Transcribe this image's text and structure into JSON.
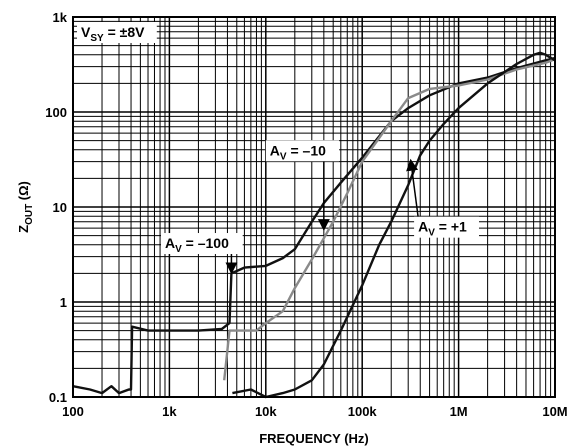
{
  "chart_data": {
    "type": "line",
    "title": "",
    "xlabel": "FREQUENCY (Hz)",
    "ylabel_main": "Z",
    "ylabel_sub": "OUT",
    "ylabel_unit": " (Ω)",
    "x_scale": "log",
    "y_scale": "log",
    "xlim": [
      100,
      10000000
    ],
    "ylim": [
      0.1,
      1000
    ],
    "grid": true,
    "x_ticks": [
      {
        "value": 100,
        "label": "100"
      },
      {
        "value": 1000,
        "label": "1k"
      },
      {
        "value": 10000,
        "label": "10k"
      },
      {
        "value": 100000,
        "label": "100k"
      },
      {
        "value": 1000000,
        "label": "1M"
      },
      {
        "value": 10000000,
        "label": "10M"
      }
    ],
    "y_ticks": [
      {
        "value": 0.1,
        "label": "0.1"
      },
      {
        "value": 1,
        "label": "1"
      },
      {
        "value": 10,
        "label": "10"
      },
      {
        "value": 100,
        "label": "100"
      },
      {
        "value": 1000,
        "label": "1k"
      }
    ],
    "condition": {
      "main": "V",
      "sub": "SY",
      "rest": " = ±8V"
    },
    "series": [
      {
        "name": "AV = -100",
        "color": "#111111",
        "points": [
          [
            100,
            0.13
          ],
          [
            150,
            0.12
          ],
          [
            200,
            0.11
          ],
          [
            250,
            0.13
          ],
          [
            300,
            0.11
          ],
          [
            380,
            0.12
          ],
          [
            400,
            0.12
          ],
          [
            410,
            0.55
          ],
          [
            600,
            0.5
          ],
          [
            1000,
            0.5
          ],
          [
            2000,
            0.5
          ],
          [
            3500,
            0.52
          ],
          [
            4200,
            0.6
          ],
          [
            4400,
            2.0
          ],
          [
            6000,
            2.3
          ],
          [
            10000,
            2.4
          ],
          [
            15000,
            2.9
          ],
          [
            20000,
            3.6
          ],
          [
            30000,
            7
          ],
          [
            40000,
            11
          ],
          [
            60000,
            18
          ],
          [
            100000,
            33
          ],
          [
            200000,
            80
          ],
          [
            300000,
            110
          ],
          [
            500000,
            150
          ],
          [
            1000000,
            200
          ],
          [
            2000000,
            230
          ],
          [
            4000000,
            290
          ],
          [
            8000000,
            350
          ],
          [
            10000000,
            370
          ]
        ]
      },
      {
        "name": "AV = -10",
        "color": "#8a8a8a",
        "points": [
          [
            3700,
            0.15
          ],
          [
            4200,
            0.5
          ],
          [
            6000,
            0.5
          ],
          [
            8000,
            0.5
          ],
          [
            10000,
            0.6
          ],
          [
            15000,
            0.8
          ],
          [
            20000,
            1.4
          ],
          [
            30000,
            2.8
          ],
          [
            50000,
            7
          ],
          [
            70000,
            14
          ],
          [
            100000,
            30
          ],
          [
            200000,
            80
          ],
          [
            300000,
            140
          ],
          [
            500000,
            175
          ],
          [
            1000000,
            190
          ],
          [
            2000000,
            220
          ],
          [
            4000000,
            280
          ],
          [
            8000000,
            330
          ],
          [
            10000000,
            360
          ]
        ]
      },
      {
        "name": "AV = +1",
        "color": "#111111",
        "points": [
          [
            4500,
            0.11
          ],
          [
            7000,
            0.12
          ],
          [
            10000,
            0.1
          ],
          [
            15000,
            0.11
          ],
          [
            20000,
            0.12
          ],
          [
            30000,
            0.15
          ],
          [
            40000,
            0.22
          ],
          [
            60000,
            0.5
          ],
          [
            100000,
            1.5
          ],
          [
            150000,
            4
          ],
          [
            200000,
            7
          ],
          [
            300000,
            17
          ],
          [
            400000,
            35
          ],
          [
            500000,
            50
          ],
          [
            700000,
            75
          ],
          [
            1000000,
            110
          ],
          [
            2000000,
            200
          ],
          [
            4000000,
            320
          ],
          [
            6000000,
            400
          ],
          [
            7000000,
            420
          ],
          [
            8000000,
            400
          ],
          [
            10000000,
            350
          ]
        ]
      }
    ],
    "annotations": [
      {
        "main": "A",
        "sub": "V",
        "rest": " = –100",
        "tx": 900,
        "ty": 3.7,
        "ax": 4400,
        "ay": 2.1
      },
      {
        "main": "A",
        "sub": "V",
        "rest": " = –10",
        "tx": 11000,
        "ty": 35,
        "ax": 40000,
        "ay": 6
      },
      {
        "main": "A",
        "sub": "V",
        "rest": " = +1",
        "tx": 380000,
        "ty": 5.5,
        "ax": 320000,
        "ay": 30
      }
    ]
  }
}
